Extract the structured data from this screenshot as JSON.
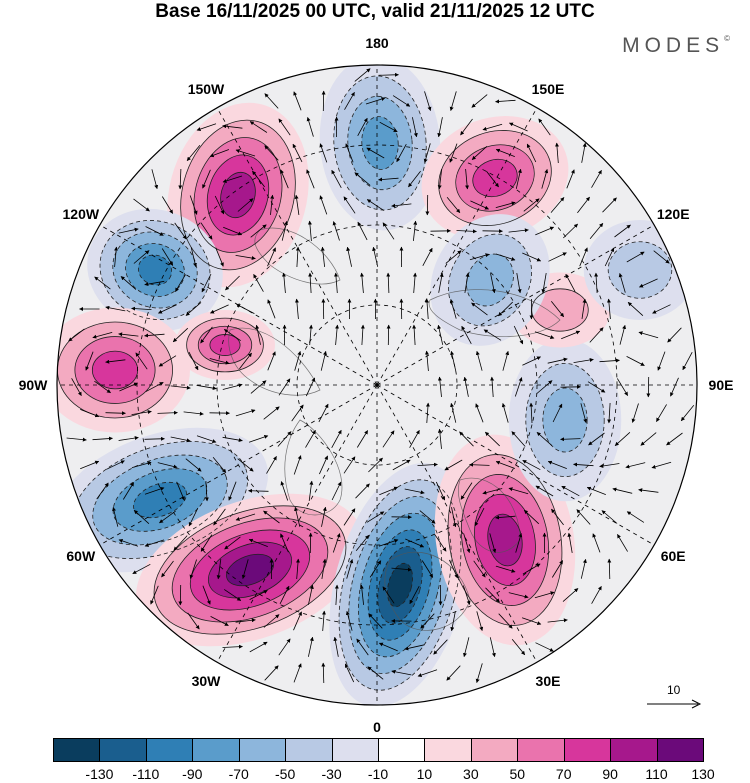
{
  "title": "Base 16/11/2025 00 UTC, valid 21/11/2025 12 UTC",
  "brand": {
    "text": "MODES",
    "mark": "©"
  },
  "map": {
    "projection": "north-polar-stereographic",
    "longitude_labels": [
      "180",
      "150E",
      "120E",
      "90E",
      "60E",
      "30E",
      "0",
      "30W",
      "60W",
      "90W",
      "120W",
      "150W"
    ],
    "anomaly_centers": [
      {
        "name": "negative-north-180",
        "sign": "negative",
        "strength": 70
      },
      {
        "name": "positive-150e",
        "sign": "positive",
        "strength": 70
      },
      {
        "name": "positive-150w",
        "sign": "positive",
        "strength": 90
      },
      {
        "name": "negative-120w",
        "sign": "negative",
        "strength": 90
      },
      {
        "name": "positive-90w",
        "sign": "positive",
        "strength": 70
      },
      {
        "name": "positive-100w-inner",
        "sign": "positive",
        "strength": 70
      },
      {
        "name": "negative-60w",
        "sign": "negative",
        "strength": 90
      },
      {
        "name": "positive-45w",
        "sign": "positive",
        "strength": 110
      },
      {
        "name": "negative-10e",
        "sign": "negative",
        "strength": 130
      },
      {
        "name": "positive-40e",
        "sign": "positive",
        "strength": 90
      },
      {
        "name": "negative-75e",
        "sign": "negative",
        "strength": 50
      },
      {
        "name": "positive-100e",
        "sign": "positive",
        "strength": 30
      },
      {
        "name": "negative-130e",
        "sign": "negative",
        "strength": 50
      },
      {
        "name": "negative-110e",
        "sign": "negative",
        "strength": 30
      }
    ]
  },
  "reference_vector": {
    "label": "10"
  },
  "colorbar": {
    "colors": [
      "#0a3d5e",
      "#1a5e8e",
      "#2f7fb5",
      "#5a9ccb",
      "#8db6dc",
      "#b8c9e4",
      "#dddfee",
      "#ffffff",
      "#fad8df",
      "#f3aac1",
      "#ea73ad",
      "#d7369c",
      "#a6188c",
      "#6b0a7a"
    ],
    "ticks": [
      "-130",
      "-110",
      "-90",
      "-70",
      "-50",
      "-30",
      "-10",
      "10",
      "30",
      "50",
      "70",
      "90",
      "110",
      "130"
    ]
  }
}
